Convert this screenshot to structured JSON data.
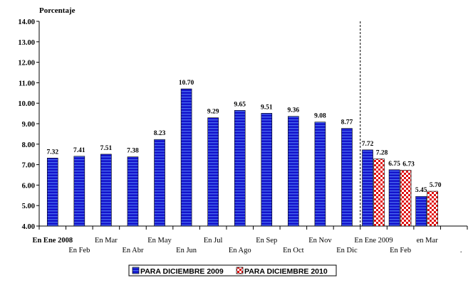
{
  "chart_data": {
    "type": "bar",
    "ylabel": "Porcentaje",
    "ylim": [
      4.0,
      14.0
    ],
    "ytick_step": 1.0,
    "yticks": [
      "4.00",
      "5.00",
      "6.00",
      "7.00",
      "8.00",
      "9.00",
      "10.00",
      "11.00",
      "12.00",
      "13.00",
      "14.00"
    ],
    "categories": [
      "En Ene 2008",
      "En Feb",
      "En Mar",
      "En Abr",
      "En May",
      "En Jun",
      "En Jul",
      "En Ago",
      "En Sep",
      "En Oct",
      "En Nov",
      "En Dic",
      "En Ene 2009",
      "En Feb",
      "en Mar",
      "."
    ],
    "series": [
      {
        "name": "PARA DICIEMBRE 2009",
        "color": "#1010c8",
        "values": [
          7.32,
          7.41,
          7.51,
          7.38,
          8.23,
          10.7,
          9.29,
          9.65,
          9.51,
          9.36,
          9.08,
          8.77,
          7.72,
          6.75,
          5.45,
          null
        ],
        "labels": [
          "7.32",
          "7.41",
          "7.51",
          "7.38",
          "8.23",
          "10.70",
          "9.29",
          "9.65",
          "9.51",
          "9.36",
          "9.08",
          "8.77",
          "7.72",
          "6.75",
          "5.45",
          ""
        ]
      },
      {
        "name": "PARA DICIEMBRE 2010",
        "color": "#e01010",
        "values": [
          null,
          null,
          null,
          null,
          null,
          null,
          null,
          null,
          null,
          null,
          null,
          null,
          7.28,
          6.73,
          5.7,
          null
        ],
        "labels": [
          "",
          "",
          "",
          "",
          "",
          "",
          "",
          "",
          "",
          "",
          "",
          "",
          "7.28",
          "6.73",
          "5.70",
          ""
        ]
      }
    ],
    "divider_after_category": 11,
    "grid": false,
    "legend_position": "bottom"
  }
}
